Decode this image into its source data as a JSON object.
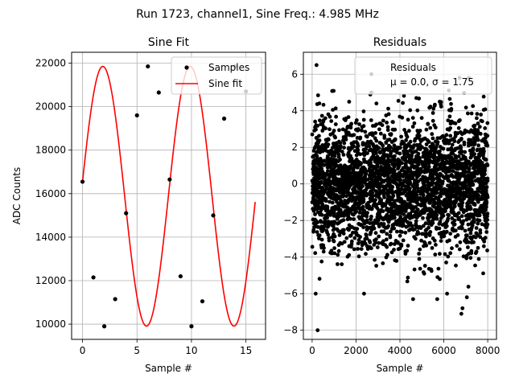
{
  "suptitle": "Run 1723, channel1, Sine Freq.: 4.985 MHz",
  "chart_data": [
    {
      "type": "line",
      "title": "Sine Fit",
      "xlabel": "Sample #",
      "ylabel": "ADC Counts",
      "xlim": [
        -1.0,
        16.8
      ],
      "ylim": [
        9300,
        22500
      ],
      "xticks": [
        0,
        5,
        10,
        15
      ],
      "yticks": [
        10000,
        12000,
        14000,
        16000,
        18000,
        20000,
        22000
      ],
      "grid": true,
      "legend": {
        "position": "top-right",
        "entries": [
          "Samples",
          "Sine fit"
        ]
      },
      "series": [
        {
          "name": "Samples",
          "kind": "scatter",
          "color": "#000000",
          "x": [
            0,
            1,
            2,
            3,
            4,
            5,
            6,
            7,
            8,
            9,
            10,
            11,
            12,
            13,
            14,
            15
          ],
          "y": [
            16550,
            12150,
            9900,
            11150,
            15100,
            19600,
            21850,
            20650,
            16650,
            12200,
            9900,
            11050,
            15000,
            19450,
            21850,
            20700
          ]
        },
        {
          "name": "Sine fit",
          "kind": "line",
          "color": "#ff0000",
          "model": {
            "offset": 15880,
            "amplitude": 5970,
            "period_samples": 8.0246,
            "phase": 0.1122
          },
          "x_range": [
            0,
            15.85
          ]
        }
      ]
    },
    {
      "type": "scatter",
      "title": "Residuals",
      "xlabel": "Sample #",
      "ylabel": "",
      "xlim": [
        -400,
        8400
      ],
      "ylim": [
        -8.5,
        7.2
      ],
      "xticks": [
        0,
        2000,
        4000,
        6000,
        8000
      ],
      "yticks": [
        -8,
        -6,
        -4,
        -2,
        0,
        2,
        4,
        6
      ],
      "grid": true,
      "legend": {
        "position": "top-right",
        "entries": [
          "Residuals",
          "μ = 0.0, σ = 1.75"
        ]
      },
      "series": [
        {
          "name": "Residuals",
          "color": "#000000",
          "n_points": 8000,
          "mean": 0.0,
          "std": 1.75,
          "notable_points": [
            {
              "x": 200,
              "y": 6.5
            },
            {
              "x": 2700,
              "y": 6.0
            },
            {
              "x": 250,
              "y": -8.0
            },
            {
              "x": 6800,
              "y": -7.1
            },
            {
              "x": 6850,
              "y": -6.8
            },
            {
              "x": 4600,
              "y": -6.3
            },
            {
              "x": 5700,
              "y": -6.3
            },
            {
              "x": 7050,
              "y": -6.2
            }
          ]
        }
      ]
    }
  ]
}
